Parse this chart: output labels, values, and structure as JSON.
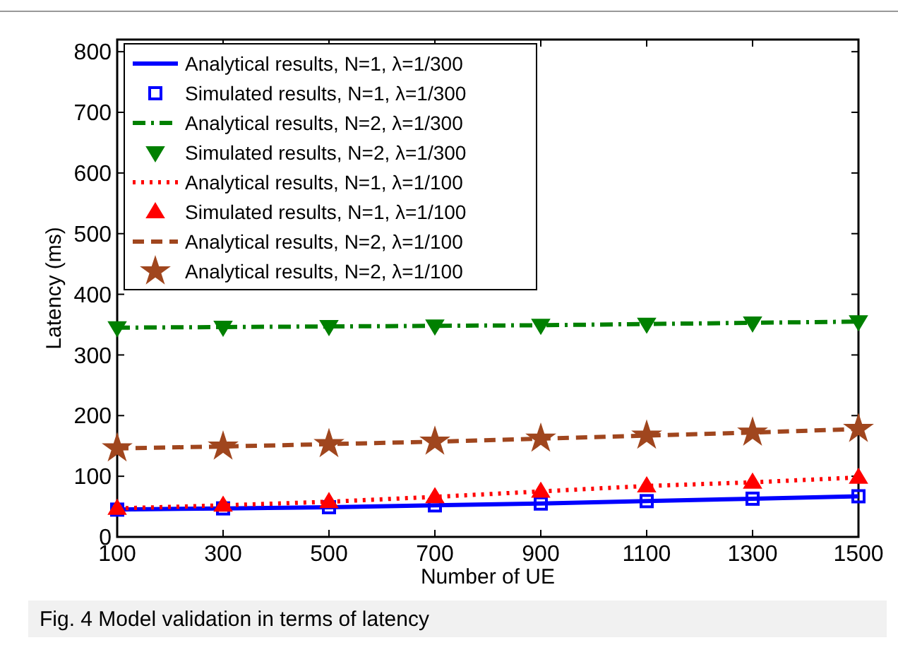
{
  "chart_data": {
    "type": "line",
    "xlabel": "Number of UE",
    "ylabel": "Latency (ms)",
    "annotations": [
      "Fig. 4 Model validation in terms of latency"
    ],
    "x": [
      100,
      300,
      500,
      700,
      900,
      1100,
      1300,
      1500
    ],
    "xlim": [
      100,
      1500
    ],
    "xticks": [
      100,
      300,
      500,
      700,
      900,
      1100,
      1300,
      1500
    ],
    "ylim": [
      0,
      820
    ],
    "yticks": [
      0,
      100,
      200,
      300,
      400,
      500,
      600,
      700,
      800
    ],
    "grid": false,
    "legend": "top left",
    "series": [
      {
        "name": "Analytical results, N=1, λ=1/300",
        "color": "#0000ff",
        "line_style": "solid",
        "marker": "none",
        "values": [
          45,
          47,
          49,
          52,
          55,
          59,
          63,
          67
        ]
      },
      {
        "name": "Simulated results, N=1, λ=1/300",
        "type": "scatter",
        "color": "#0000ff",
        "marker": "square",
        "values": [
          45,
          47,
          49,
          52,
          55,
          59,
          63,
          67
        ]
      },
      {
        "name": "Analytical results, N=2, λ=1/300",
        "color": "#008000",
        "line_style": "dashdot",
        "marker": "none",
        "values": [
          345,
          346,
          347,
          348,
          349,
          351,
          353,
          355
        ]
      },
      {
        "name": "Simulated results, N=2, λ=1/300",
        "type": "scatter",
        "color": "#008000",
        "marker": "triangle-down",
        "values": [
          345,
          346,
          347,
          348,
          349,
          351,
          353,
          355
        ]
      },
      {
        "name": "Analytical results, N=1, λ=1/100",
        "color": "#ff0000",
        "line_style": "dotted",
        "marker": "none",
        "values": [
          47,
          52,
          58,
          66,
          75,
          84,
          90,
          98
        ]
      },
      {
        "name": "Simulated results, N=1, λ=1/100",
        "type": "scatter",
        "color": "#ff0000",
        "marker": "triangle",
        "values": [
          47,
          52,
          58,
          66,
          75,
          84,
          90,
          98
        ]
      },
      {
        "name": "Analytical results, N=2, λ=1/100",
        "color": "#a0461e",
        "line_style": "dashed",
        "marker": "none",
        "values": [
          146,
          149,
          153,
          157,
          162,
          167,
          172,
          178
        ]
      },
      {
        "name": "Analytical results, N=2, λ=1/100",
        "type": "scatter",
        "color": "#a0461e",
        "marker": "star",
        "values": [
          146,
          149,
          153,
          157,
          162,
          167,
          172,
          178
        ]
      }
    ]
  }
}
